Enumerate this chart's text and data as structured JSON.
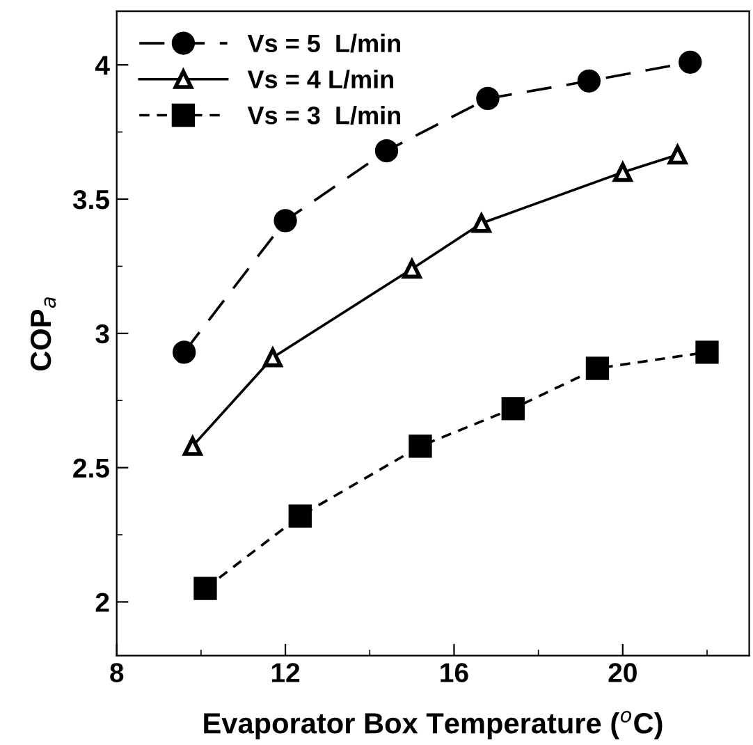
{
  "chart_data": {
    "type": "line",
    "xlabel": "Evaporator Box Temperature ($^{o}$C)",
    "ylabel": "COP$_{a}$",
    "xlim": [
      8,
      23
    ],
    "xticks": [
      8,
      12,
      16,
      20
    ],
    "ylim": [
      1.8,
      4.2
    ],
    "yticks": [
      2,
      2.5,
      3,
      3.5,
      4
    ],
    "grid": false,
    "legend": "top left",
    "series": [
      {
        "name": "Vs = 5  L/min",
        "color": "#000000",
        "marker": "circle",
        "line_style": "dashed",
        "x": [
          9.6,
          12.0,
          14.4,
          16.8,
          19.2,
          21.6
        ],
        "values": [
          2.93,
          3.42,
          3.68,
          3.875,
          3.94,
          4.01
        ]
      },
      {
        "name": "Vs = 4 L/min",
        "color": "#000000",
        "marker": "triangle",
        "line_style": "solid",
        "x": [
          9.8,
          11.7,
          15.0,
          16.65,
          20.0,
          21.3
        ],
        "values": [
          2.58,
          2.91,
          3.24,
          3.41,
          3.6,
          3.665
        ]
      },
      {
        "name": "Vs = 3  L/min",
        "color": "#000000",
        "marker": "square",
        "line_style": "dotted",
        "x": [
          10.1,
          12.35,
          15.2,
          17.4,
          19.4,
          22.0
        ],
        "values": [
          2.05,
          2.32,
          2.58,
          2.72,
          2.87,
          2.93
        ]
      }
    ]
  }
}
